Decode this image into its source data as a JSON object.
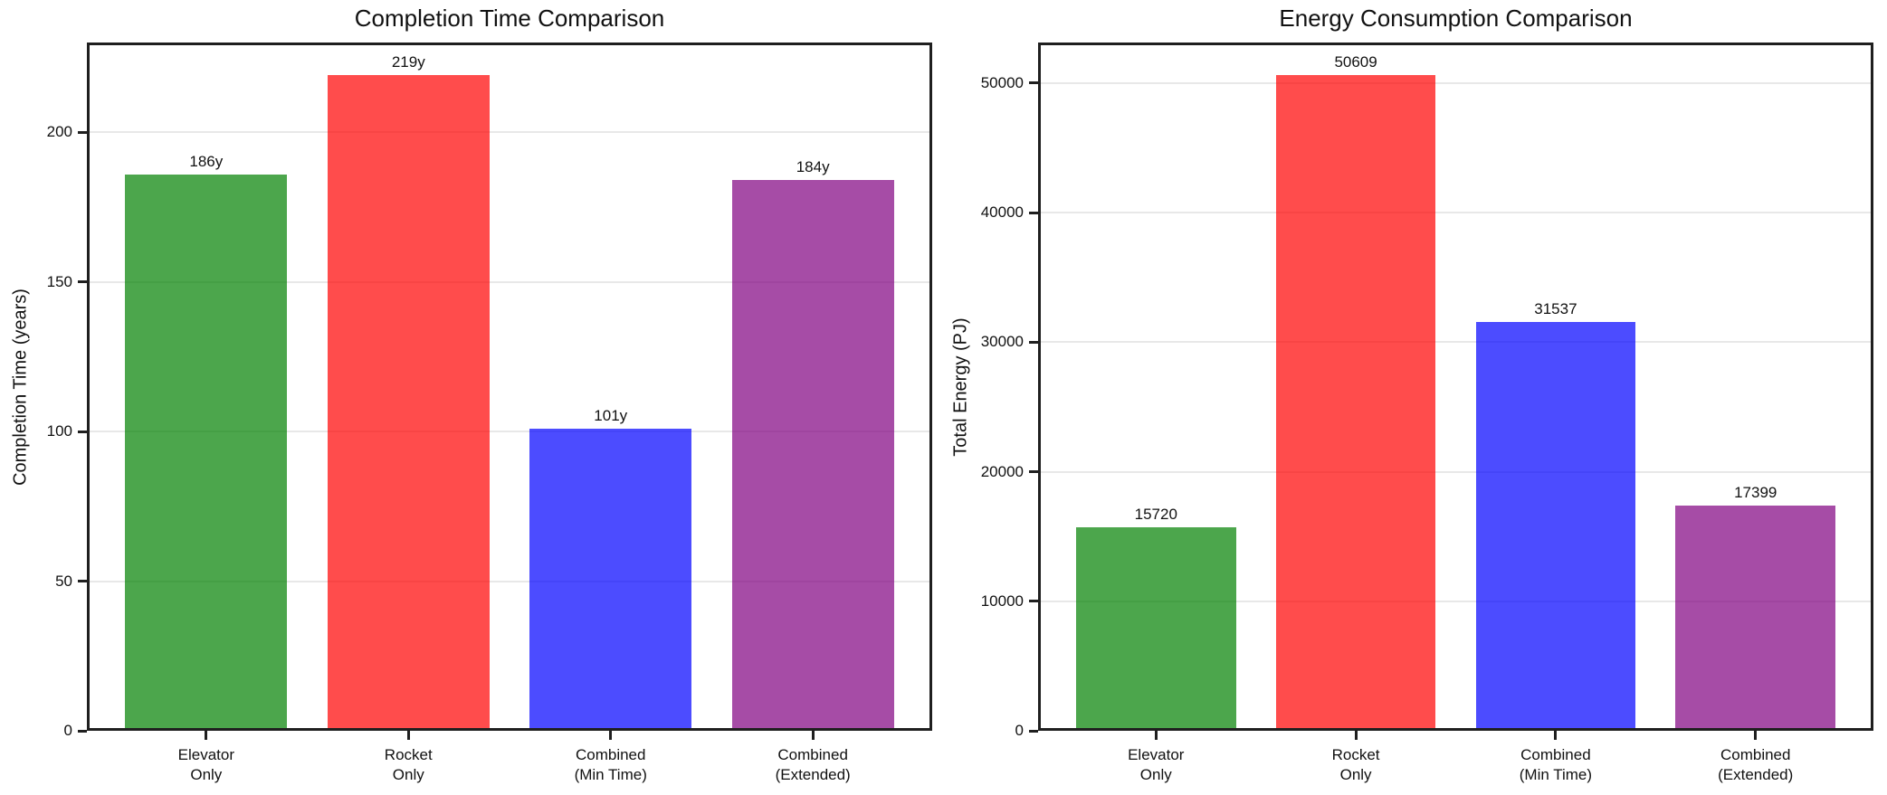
{
  "figure": {
    "background": "#ffffff",
    "text_color": "#111111"
  },
  "chart_data": [
    {
      "type": "bar",
      "title": "Completion Time Comparison",
      "xlabel": "",
      "ylabel": "Completion Time (years)",
      "categories": [
        [
          "Elevator",
          "Only"
        ],
        [
          "Rocket",
          "Only"
        ],
        [
          "Combined",
          "(Min Time)"
        ],
        [
          "Combined",
          "(Extended)"
        ]
      ],
      "values": [
        186,
        219,
        101,
        184
      ],
      "bar_labels": [
        "186y",
        "219y",
        "101y",
        "184y"
      ],
      "bar_colors": [
        "#008000",
        "#ff0000",
        "#0000ff",
        "#800080"
      ],
      "bar_alpha": 0.7,
      "yticks": [
        0,
        50,
        100,
        150,
        200
      ],
      "ytick_labels": [
        "0",
        "50",
        "100",
        "150",
        "200"
      ],
      "ylim": [
        0,
        230
      ],
      "grid": true,
      "legend": "none"
    },
    {
      "type": "bar",
      "title": "Energy Consumption Comparison",
      "xlabel": "",
      "ylabel": "Total Energy (PJ)",
      "categories": [
        [
          "Elevator",
          "Only"
        ],
        [
          "Rocket",
          "Only"
        ],
        [
          "Combined",
          "(Min Time)"
        ],
        [
          "Combined",
          "(Extended)"
        ]
      ],
      "values": [
        15720,
        50609,
        31537,
        17399
      ],
      "bar_labels": [
        "15720",
        "50609",
        "31537",
        "17399"
      ],
      "bar_colors": [
        "#008000",
        "#ff0000",
        "#0000ff",
        "#800080"
      ],
      "bar_alpha": 0.7,
      "yticks": [
        0,
        10000,
        20000,
        30000,
        40000,
        50000
      ],
      "ytick_labels": [
        "0",
        "10000",
        "20000",
        "30000",
        "40000",
        "50000"
      ],
      "ylim": [
        0,
        53140
      ],
      "grid": true,
      "legend": "none"
    }
  ]
}
